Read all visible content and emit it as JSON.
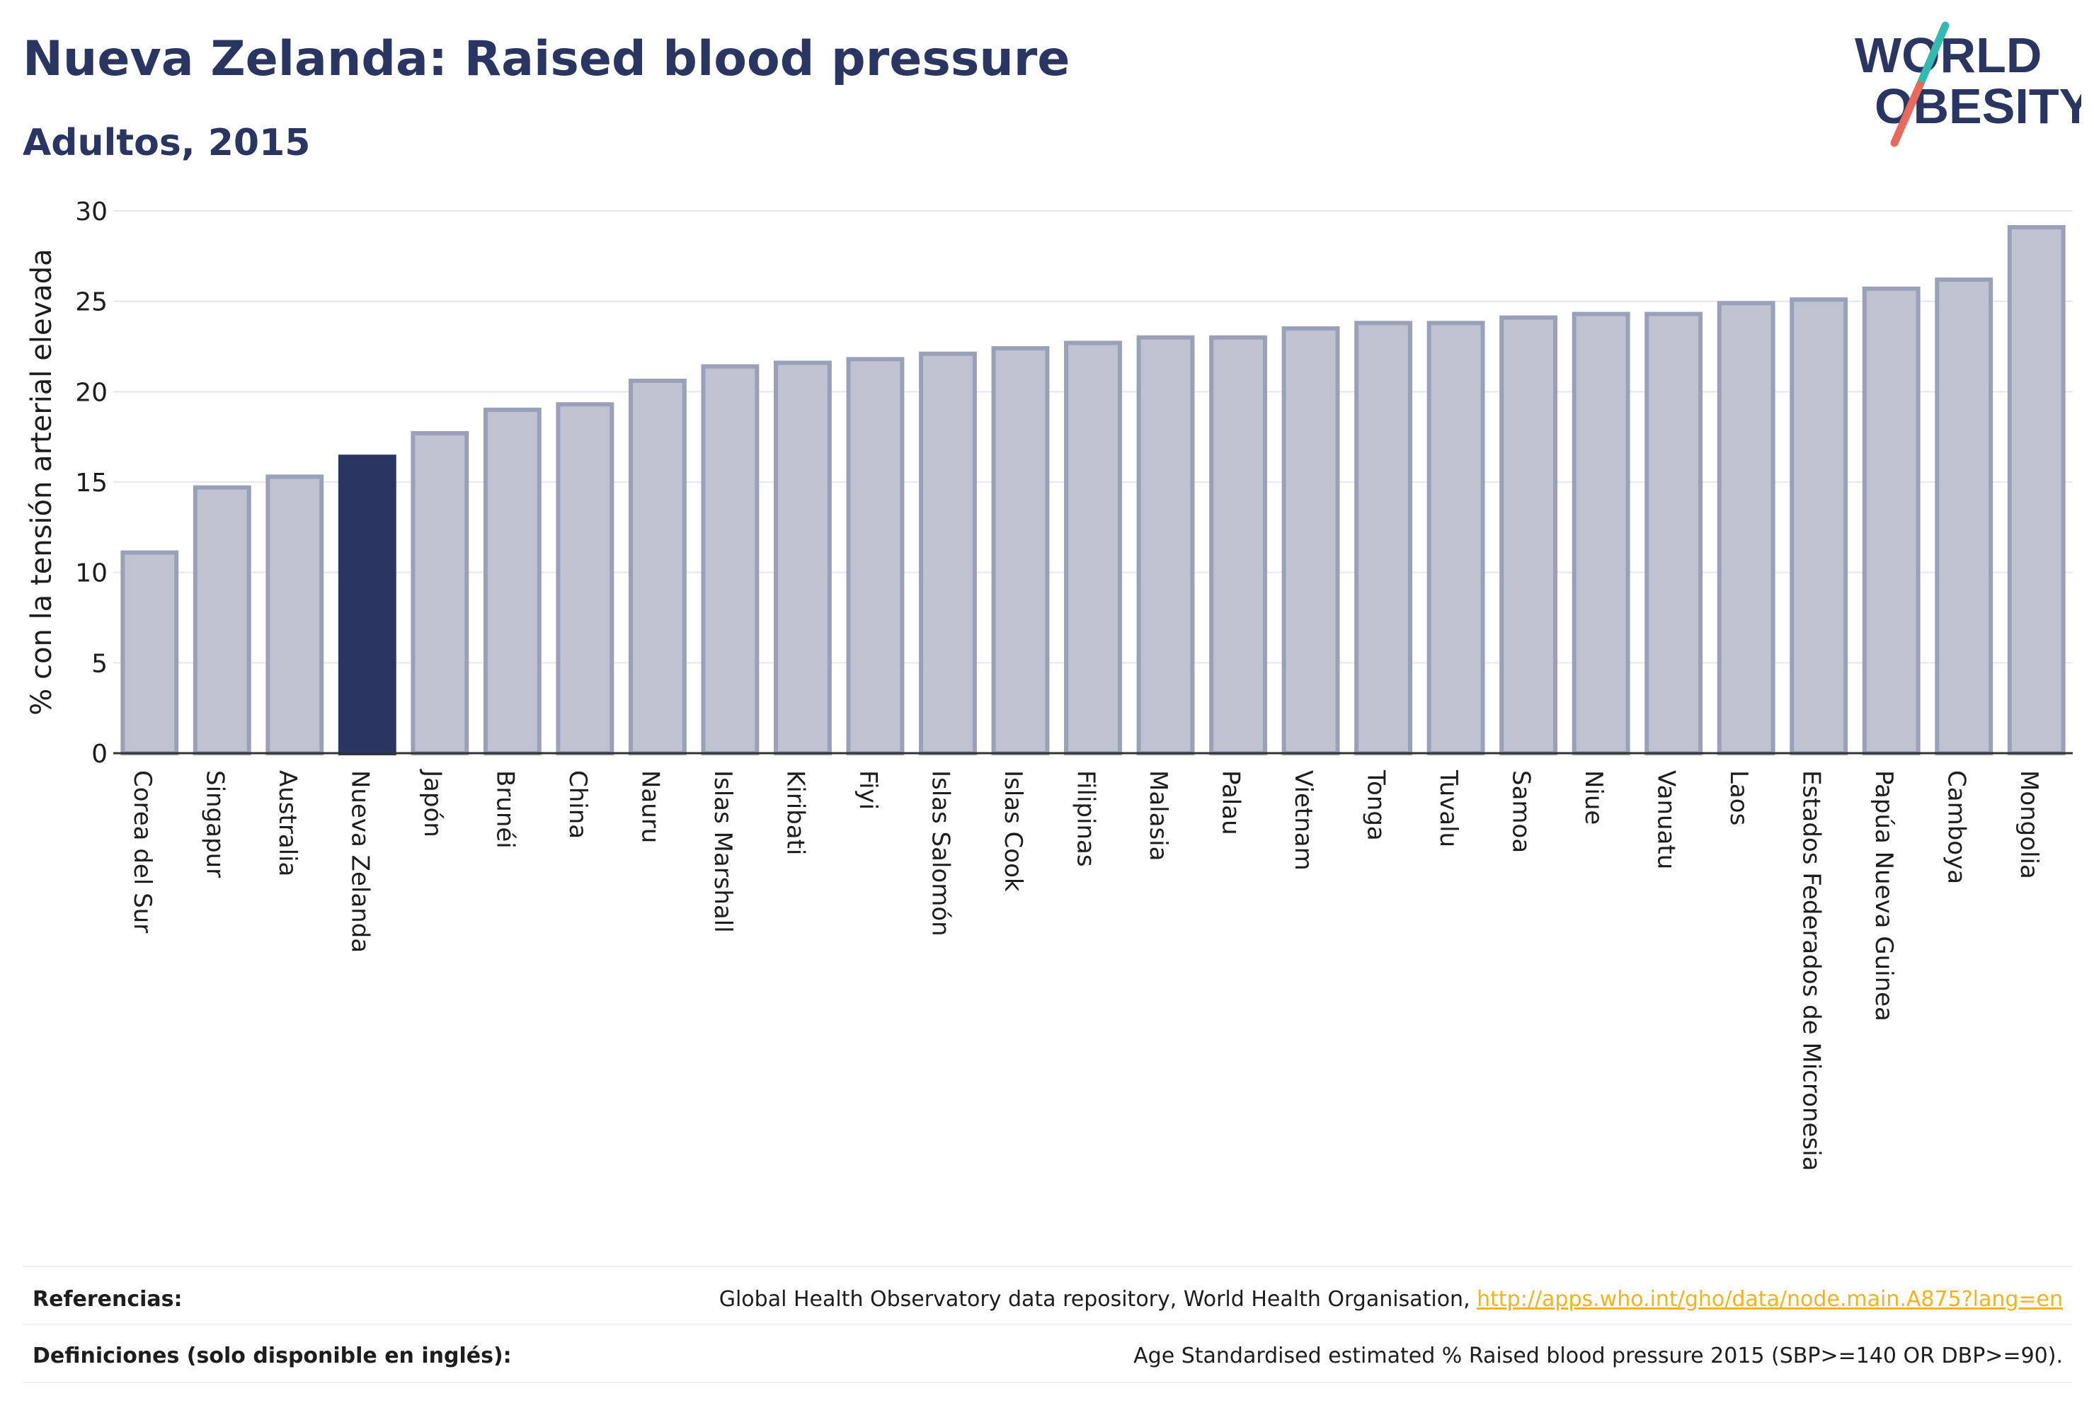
{
  "header": {
    "title": "Nueva Zelanda: Raised blood pressure",
    "subtitle": "Adultos, 2015"
  },
  "logo": {
    "line1": "WORLD",
    "line2": "OBESITY"
  },
  "colors": {
    "highlight": "#2b3562",
    "bar": "#bfc3d1",
    "bar_border": "#9aa0b8",
    "title": "#2b3562",
    "logo_slash_teal": "#33b9b0",
    "logo_slash_red": "#e86a5c",
    "link": "#f2b31c"
  },
  "chart_data": {
    "type": "bar",
    "ylabel": "% con la tensión arterial elevada",
    "xlabel": "",
    "ylim": [
      0,
      30
    ],
    "yticks": [
      0,
      5,
      10,
      15,
      20,
      25,
      30
    ],
    "grid": true,
    "highlight": "Nueva Zelanda",
    "categories": [
      "Corea del Sur",
      "Singapur",
      "Australia",
      "Nueva Zelanda",
      "Japón",
      "Brunéi",
      "China",
      "Nauru",
      "Islas Marshall",
      "Kiribati",
      "Fiyi",
      "Islas Salomón",
      "Islas Cook",
      "Filipinas",
      "Malasia",
      "Palau",
      "Vietnam",
      "Tonga",
      "Tuvalu",
      "Samoa",
      "Niue",
      "Vanuatu",
      "Laos",
      "Estados Federados de Micronesia",
      "Papúa Nueva Guinea",
      "Camboya",
      "Mongolia"
    ],
    "values": [
      11.1,
      14.7,
      15.3,
      16.4,
      17.7,
      19.0,
      19.3,
      20.6,
      21.4,
      21.6,
      21.8,
      22.1,
      22.4,
      22.7,
      23.0,
      23.0,
      23.5,
      23.8,
      23.8,
      24.1,
      24.3,
      24.3,
      24.9,
      25.1,
      25.7,
      26.2,
      29.1
    ]
  },
  "footer": {
    "references_label": "Referencias:",
    "references_text": "Global Health Observatory data repository, World Health Organisation, ",
    "references_link": "http://apps.who.int/gho/data/node.main.A875?lang=en",
    "definitions_label": "Definiciones (solo disponible en inglés):",
    "definitions_text": "Age Standardised estimated % Raised blood pressure 2015 (SBP>=140 OR DBP>=90)."
  }
}
